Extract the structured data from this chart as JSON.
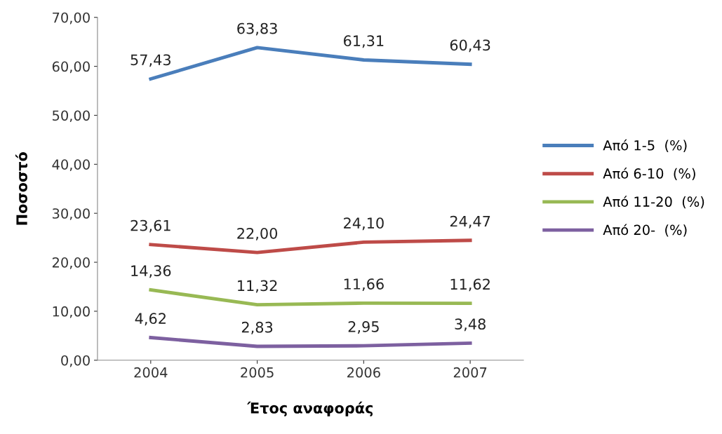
{
  "chart_data": {
    "type": "line",
    "xlabel": "Έτος αναφοράς",
    "ylabel": "Ποσοστό",
    "categories": [
      "2004",
      "2005",
      "2006",
      "2007"
    ],
    "series": [
      {
        "name": "Από 1-5  (%)",
        "color": "#4a7ebb",
        "values": [
          57.43,
          63.83,
          61.31,
          60.43
        ],
        "value_labels": [
          "57,43",
          "63,83",
          "61,31",
          "60,43"
        ]
      },
      {
        "name": "Από 6-10  (%)",
        "color": "#be4b48",
        "values": [
          23.61,
          22.0,
          24.1,
          24.47
        ],
        "value_labels": [
          "23,61",
          "22,00",
          "24,10",
          "24,47"
        ]
      },
      {
        "name": "Από 11-20  (%)",
        "color": "#98b954",
        "values": [
          14.36,
          11.32,
          11.66,
          11.62
        ],
        "value_labels": [
          "14,36",
          "11,32",
          "11,66",
          "11,62"
        ]
      },
      {
        "name": "Από 20-  (%)",
        "color": "#7d60a0",
        "values": [
          4.62,
          2.83,
          2.95,
          3.48
        ],
        "value_labels": [
          "4,62",
          "2,83",
          "2,95",
          "3,48"
        ]
      }
    ],
    "ylim": [
      0,
      70
    ],
    "yticks": [
      {
        "value": 0,
        "label": "0,00"
      },
      {
        "value": 10,
        "label": "10,00"
      },
      {
        "value": 20,
        "label": "20,00"
      },
      {
        "value": 30,
        "label": "30,00"
      },
      {
        "value": 40,
        "label": "40,00"
      },
      {
        "value": 50,
        "label": "50,00"
      },
      {
        "value": 60,
        "label": "60,00"
      },
      {
        "value": 70,
        "label": "70,00"
      }
    ],
    "grid": false,
    "legend": "right",
    "marker": "none",
    "line_style": "solid"
  }
}
